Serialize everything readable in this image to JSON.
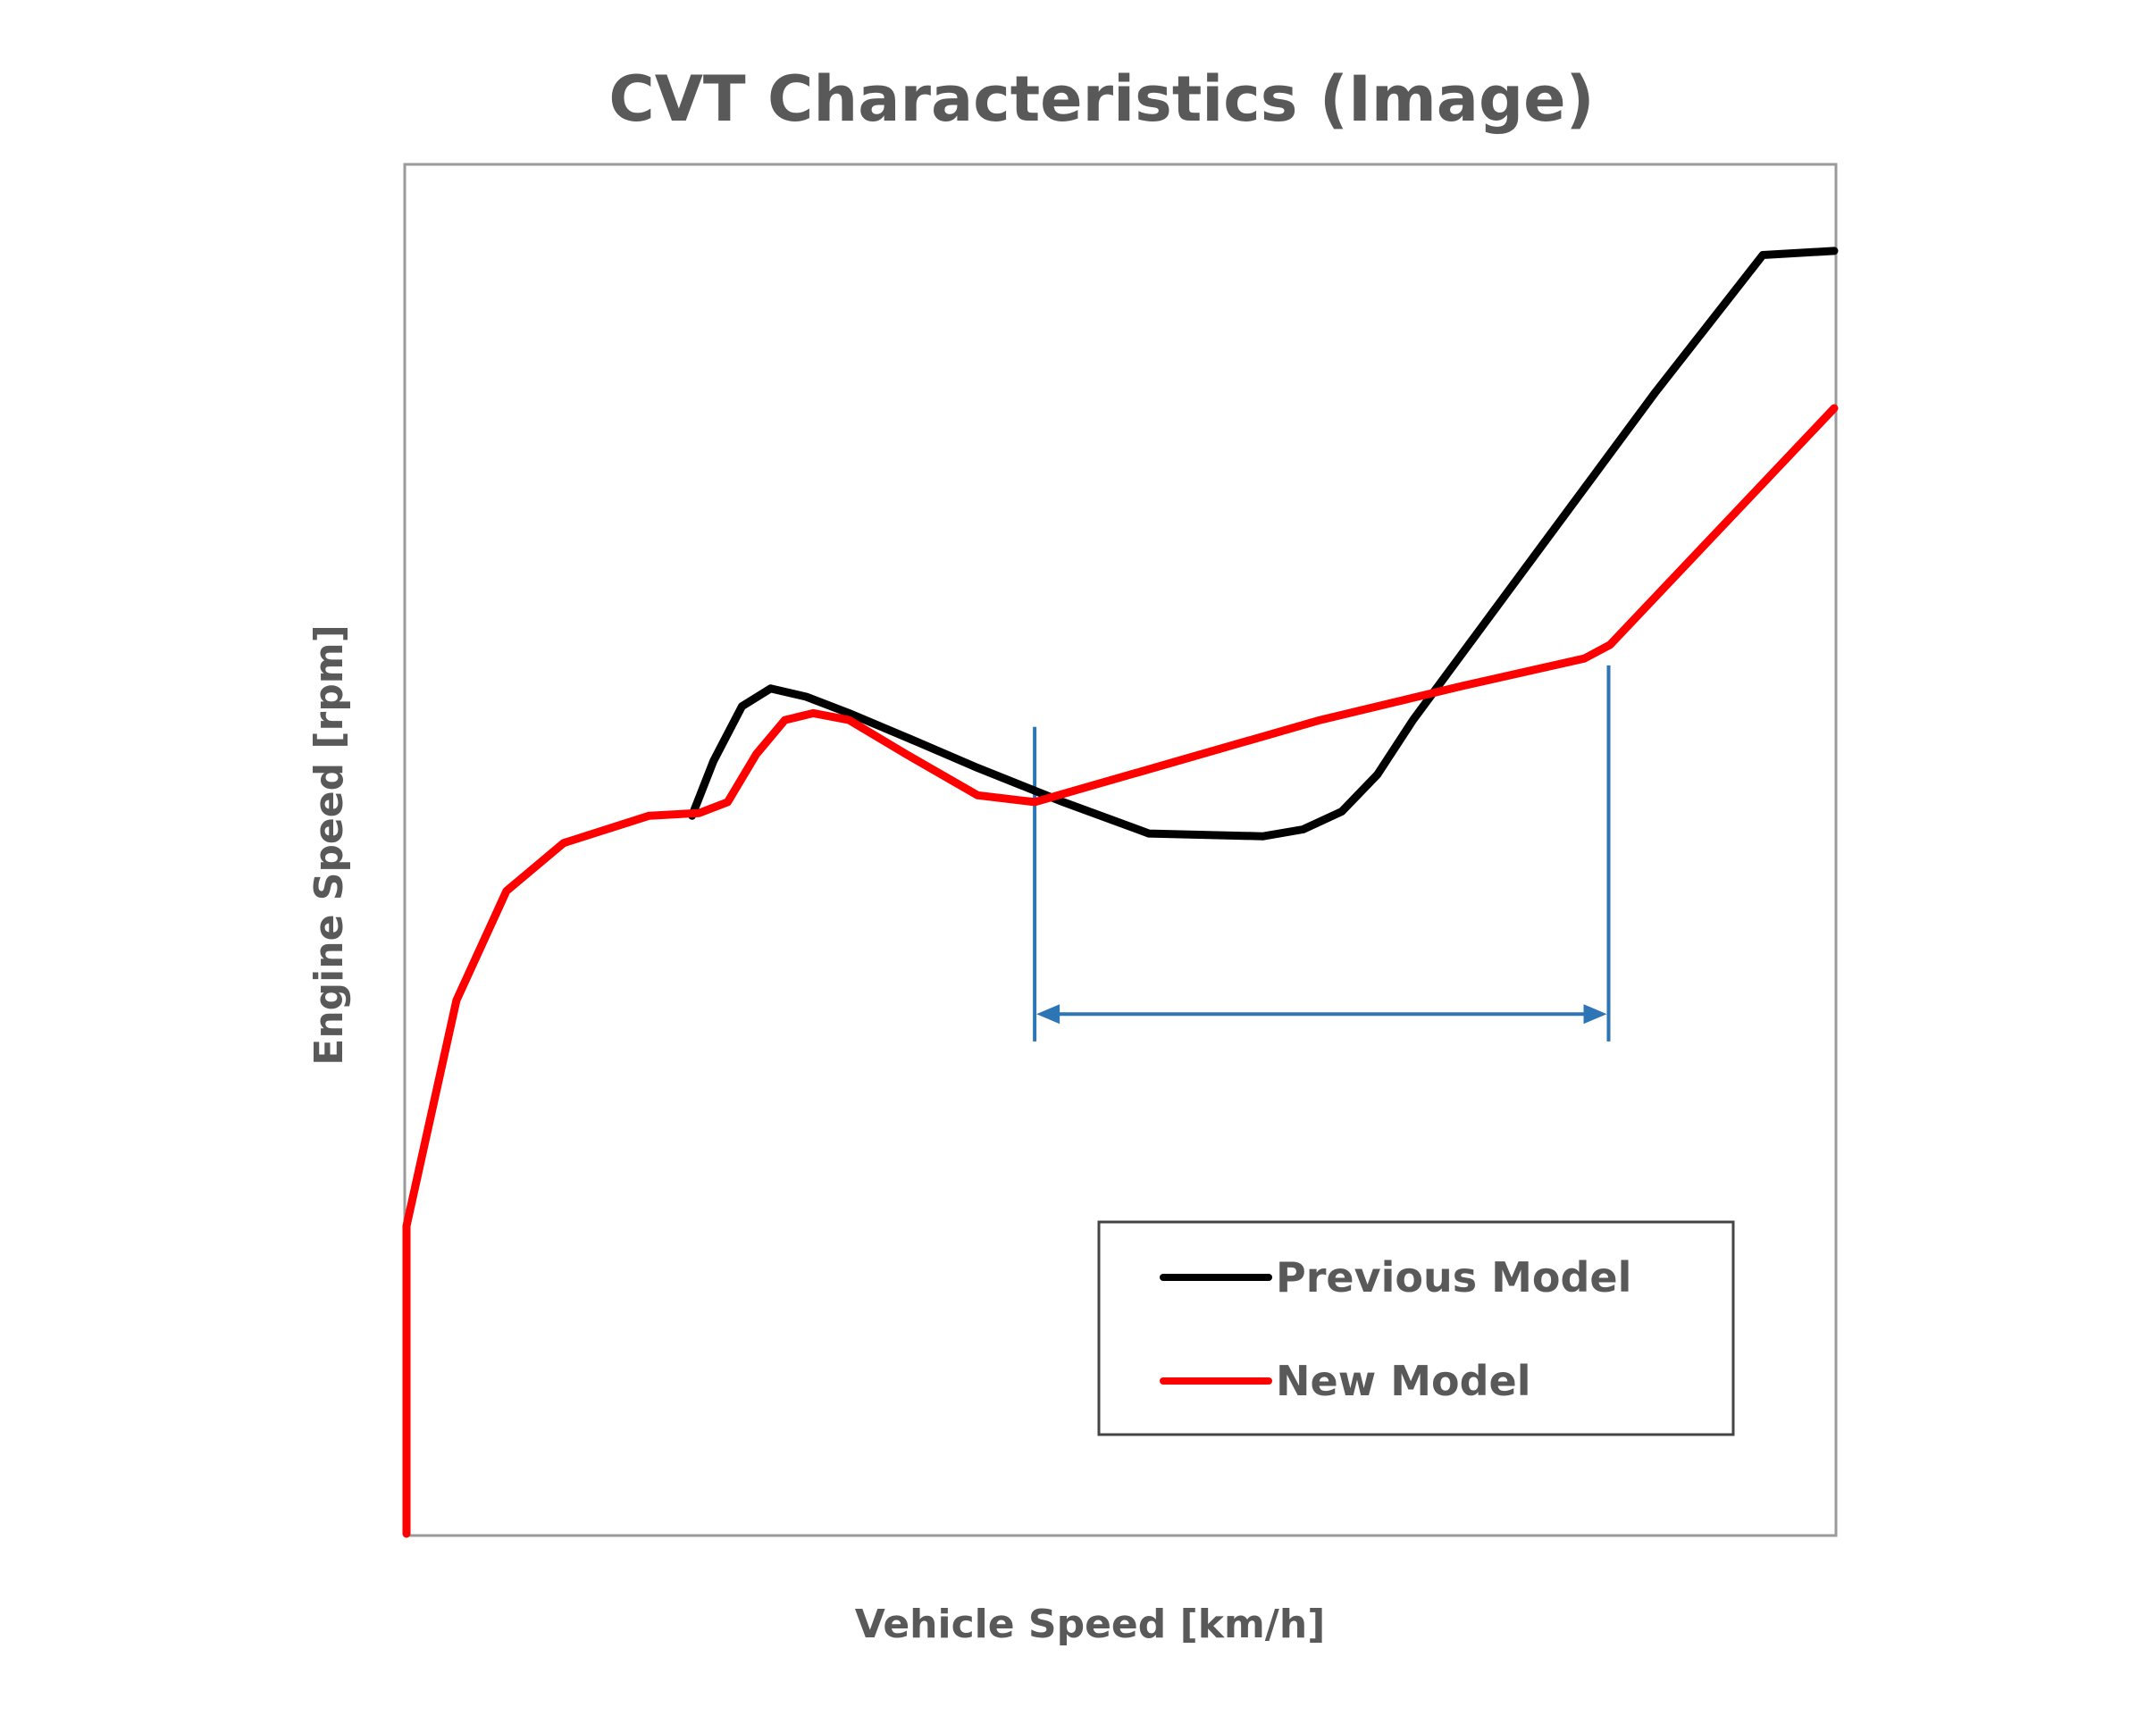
{
  "chart_data": {
    "type": "line",
    "title": "CVT Characteristics (Image)",
    "xlabel": "Vehicle Speed [km/h]",
    "ylabel": "Engine Speed [rpm]",
    "xlim": [
      0,
      100
    ],
    "ylim": [
      0,
      100
    ],
    "grid": false,
    "legend_position": "bottom-right",
    "series": [
      {
        "name": "Previous Model",
        "color": "#000000",
        "x": [
          20.0,
          21.5,
          23.5,
          25.5,
          28.0,
          31.0,
          36.0,
          40.0,
          46.0,
          52.0,
          60.0,
          62.8,
          65.5,
          68.0,
          70.5,
          79.0,
          87.5,
          95.0,
          100.0
        ],
        "y": [
          52.5,
          56.5,
          60.5,
          61.8,
          61.2,
          60.0,
          57.8,
          56.0,
          53.5,
          51.2,
          51.0,
          51.5,
          52.8,
          55.5,
          59.5,
          71.5,
          83.5,
          93.5,
          93.8
        ]
      },
      {
        "name": "New Model",
        "color": "#ff0000",
        "x": [
          0.0,
          0.0,
          0.0,
          3.5,
          7.0,
          11.0,
          17.0,
          20.5,
          22.5,
          24.5,
          26.5,
          28.5,
          31.0,
          35.0,
          40.0,
          44.0,
          54.0,
          64.0,
          74.0,
          82.5,
          84.3,
          100.0
        ],
        "y": [
          0.0,
          10.0,
          22.5,
          39.0,
          47.0,
          50.5,
          52.5,
          52.7,
          53.5,
          57.0,
          59.5,
          60.0,
          59.5,
          57.0,
          54.0,
          53.5,
          56.5,
          59.5,
          62.0,
          64.0,
          65.0,
          82.3
        ]
      }
    ],
    "annotations": [
      {
        "type": "range-arrow",
        "color": "#2e75b6",
        "x_start": 44.0,
        "x_end": 84.2,
        "arrow_y": 38.0,
        "left_line_y": [
          36.0,
          59.0
        ],
        "right_line_y": [
          36.0,
          63.5
        ]
      }
    ]
  }
}
